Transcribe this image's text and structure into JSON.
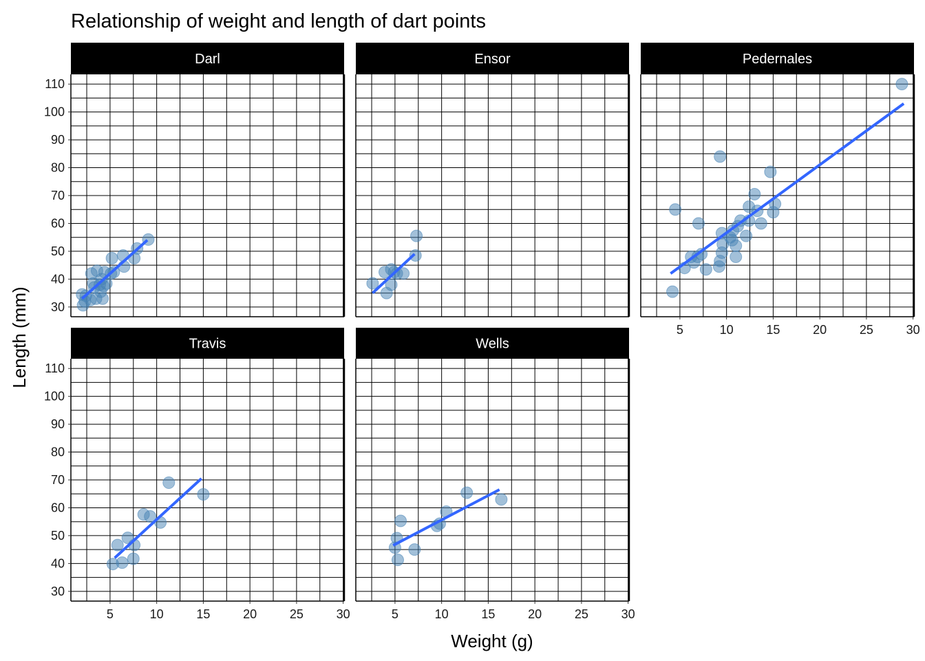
{
  "chart_data": {
    "type": "scatter",
    "title": "Relationship of weight and length of dart points",
    "xlabel": "Weight (g)",
    "ylabel": "Length (mm)",
    "xlim": [
      0.8,
      30.1
    ],
    "ylim": [
      26.5,
      113.5
    ],
    "x_ticks": [
      5,
      10,
      15,
      20,
      25,
      30
    ],
    "y_ticks": [
      30,
      40,
      50,
      60,
      70,
      80,
      90,
      100,
      110
    ],
    "grid": true,
    "colors": {
      "points": "#4682b4",
      "trend": "#3366ff",
      "strip": "#000000",
      "grid": "#000000"
    },
    "panels": [
      {
        "name": "Darl",
        "points": [
          [
            2.1,
            30.6
          ],
          [
            2.3,
            32
          ],
          [
            2.9,
            32.5
          ],
          [
            3.5,
            33
          ],
          [
            2.0,
            34.5
          ],
          [
            2.4,
            34
          ],
          [
            4.2,
            33
          ],
          [
            4.0,
            35.5
          ],
          [
            3.3,
            37
          ],
          [
            3.9,
            38
          ],
          [
            3.2,
            38.5
          ],
          [
            4.3,
            37.5
          ],
          [
            4.6,
            38.4
          ],
          [
            4.1,
            40
          ],
          [
            3.0,
            42
          ],
          [
            4.4,
            42.5
          ],
          [
            3.6,
            43
          ],
          [
            5.1,
            42
          ],
          [
            5.4,
            42.5
          ],
          [
            6.5,
            44.5
          ],
          [
            5.2,
            47.5
          ],
          [
            6.4,
            48.5
          ],
          [
            7.6,
            47.5
          ],
          [
            7.9,
            51
          ],
          [
            9.1,
            54.2
          ]
        ],
        "trend": [
          [
            2.0,
            33.0
          ],
          [
            9.0,
            54.0
          ]
        ]
      },
      {
        "name": "Ensor",
        "points": [
          [
            2.6,
            38.5
          ],
          [
            4.1,
            35
          ],
          [
            4.6,
            38
          ],
          [
            3.9,
            42.5
          ],
          [
            4.6,
            43.5
          ],
          [
            4.9,
            42.5
          ],
          [
            5.2,
            42
          ],
          [
            5.9,
            42
          ],
          [
            7.2,
            48.5
          ],
          [
            7.3,
            55.5
          ]
        ],
        "trend": [
          [
            2.6,
            35.0
          ],
          [
            7.1,
            49.0
          ]
        ]
      },
      {
        "name": "Pedernales",
        "points": [
          [
            4.2,
            35.5
          ],
          [
            4.5,
            65
          ],
          [
            5.5,
            44
          ],
          [
            6.2,
            48
          ],
          [
            6.5,
            46
          ],
          [
            6.9,
            48
          ],
          [
            7.3,
            49
          ],
          [
            7.0,
            60
          ],
          [
            7.8,
            43.5
          ],
          [
            9.2,
            44.5
          ],
          [
            9.3,
            46.5
          ],
          [
            9.5,
            49.5
          ],
          [
            9.6,
            52.5
          ],
          [
            9.5,
            56.5
          ],
          [
            9.3,
            84
          ],
          [
            10.4,
            55
          ],
          [
            10.6,
            54
          ],
          [
            10.7,
            57.5
          ],
          [
            11.0,
            52
          ],
          [
            11.0,
            48
          ],
          [
            11.2,
            59
          ],
          [
            11.5,
            61
          ],
          [
            12.1,
            55.5
          ],
          [
            12.4,
            61
          ],
          [
            12.4,
            66
          ],
          [
            13.0,
            70.5
          ],
          [
            13.3,
            64.5
          ],
          [
            13.7,
            60
          ],
          [
            14.7,
            78.5
          ],
          [
            15.0,
            64
          ],
          [
            15.2,
            67
          ],
          [
            28.8,
            110
          ]
        ],
        "trend": [
          [
            4.0,
            42.0
          ],
          [
            29.0,
            103.0
          ]
        ]
      },
      {
        "name": "Travis",
        "points": [
          [
            5.3,
            39.8
          ],
          [
            6.3,
            40.3
          ],
          [
            7.5,
            41.7
          ],
          [
            5.8,
            46.6
          ],
          [
            7.6,
            46.6
          ],
          [
            6.9,
            49.2
          ],
          [
            8.6,
            57.6
          ],
          [
            9.3,
            56.9
          ],
          [
            10.4,
            54.7
          ],
          [
            11.3,
            69
          ],
          [
            15.0,
            64.8
          ]
        ],
        "trend": [
          [
            5.5,
            42.0
          ],
          [
            14.8,
            70.5
          ]
        ]
      },
      {
        "name": "Wells",
        "points": [
          [
            5.3,
            41.3
          ],
          [
            5.0,
            45.7
          ],
          [
            7.1,
            45
          ],
          [
            5.2,
            49.1
          ],
          [
            5.6,
            55.3
          ],
          [
            9.5,
            53.5
          ],
          [
            9.8,
            54.3
          ],
          [
            10.5,
            58.6
          ],
          [
            12.7,
            65.4
          ],
          [
            16.4,
            63
          ]
        ],
        "trend": [
          [
            4.8,
            46.5
          ],
          [
            16.2,
            66.5
          ]
        ]
      }
    ]
  }
}
